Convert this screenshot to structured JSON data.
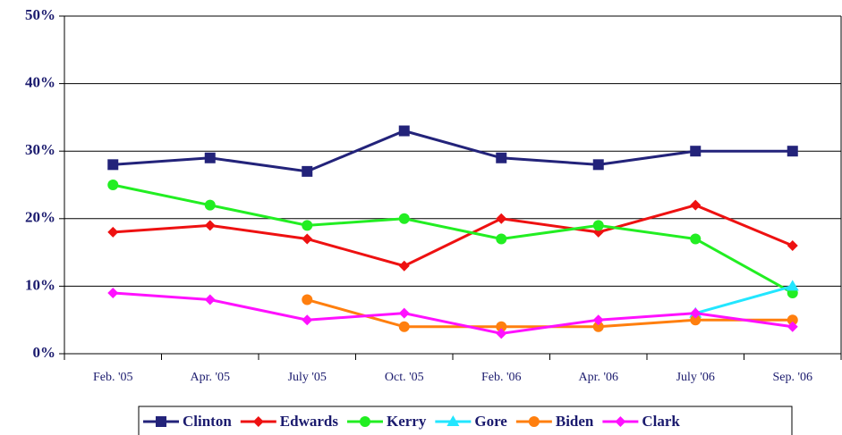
{
  "chart_data": {
    "type": "line",
    "categories": [
      "Feb. '05",
      "Apr. '05",
      "July '05",
      "Oct. '05",
      "Feb. '06",
      "Apr. '06",
      "July '06",
      "Sep. '06"
    ],
    "series": [
      {
        "name": "Clinton",
        "color": "#23237a",
        "marker": "square",
        "values": [
          28,
          29,
          27,
          33,
          29,
          28,
          30,
          30
        ]
      },
      {
        "name": "Edwards",
        "color": "#ee1111",
        "marker": "diamond",
        "values": [
          18,
          19,
          17,
          13,
          20,
          18,
          22,
          16
        ]
      },
      {
        "name": "Kerry",
        "color": "#22ee22",
        "marker": "circle",
        "values": [
          25,
          22,
          19,
          20,
          17,
          19,
          17,
          9
        ]
      },
      {
        "name": "Gore",
        "color": "#22e6ff",
        "marker": "triangle",
        "values": [
          null,
          null,
          null,
          null,
          null,
          null,
          6,
          10
        ]
      },
      {
        "name": "Biden",
        "color": "#ff7f0e",
        "marker": "circle",
        "values": [
          null,
          null,
          8,
          4,
          4,
          4,
          5,
          5
        ]
      },
      {
        "name": "Clark",
        "color": "#ff11ff",
        "marker": "diamond",
        "values": [
          9,
          8,
          5,
          6,
          3,
          5,
          6,
          4
        ]
      }
    ],
    "ylim": [
      0,
      50
    ],
    "yticks": [
      {
        "value": 0,
        "label": "0%"
      },
      {
        "value": 10,
        "label": "10%"
      },
      {
        "value": 20,
        "label": "20%"
      },
      {
        "value": 30,
        "label": "30%"
      },
      {
        "value": 40,
        "label": "40%"
      },
      {
        "value": 50,
        "label": "50%"
      }
    ],
    "grid": true,
    "legend": "bottom"
  }
}
